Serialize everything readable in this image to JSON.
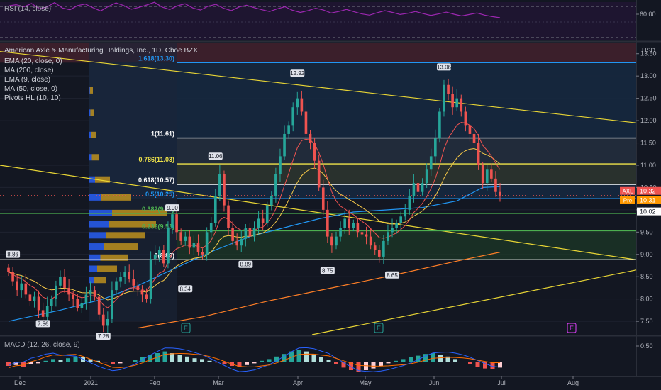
{
  "colors": {
    "bg": "#131722",
    "up": "#26a69a",
    "down": "#ef5350",
    "grid": "#2a2e39",
    "text": "#d1d4dc",
    "axis_text": "#b2b5be",
    "ema20": "#f7c948",
    "ma200": "#ff7f27",
    "ema9": "#ef5350",
    "ma50": "#2196f3",
    "trend": "#e8d535",
    "rsi": "#9c27b0",
    "fib_white": "#ffffff",
    "fib_yellow": "#f0e44a",
    "fib_green": "#4caf50",
    "fib_blue": "#2196f3"
  },
  "rsi_panel": {
    "title": "RSI (14, close)",
    "tick": "60.00",
    "line_values": [
      62.8,
      63.2,
      62.5,
      63.6,
      61.8,
      62.4,
      63.9,
      62.1,
      61.5,
      62.9,
      63.4,
      62.2,
      61.1,
      62.6,
      63.8,
      62.9,
      61.7,
      62.3,
      63.1,
      64.0,
      62.4,
      61.6,
      62.8,
      63.5,
      62.1,
      61.4,
      62.7,
      63.3,
      62.0,
      61.2,
      62.4,
      63.0,
      62.2,
      61.5,
      60.9,
      61.8,
      62.5,
      61.3,
      60.6,
      61.2,
      62.0,
      61.4,
      60.4,
      60.9,
      61.6,
      60.8,
      60.1,
      59.7,
      60.5,
      61.2,
      60.6,
      59.9,
      60.3,
      60.9,
      60.2,
      59.6,
      60.1,
      60.7,
      60.0,
      59.4,
      59.9,
      60.4,
      59.7,
      59.2,
      58.8
    ]
  },
  "main_panel": {
    "title": "American Axle & Manufacturing Holdings, Inc., 1D, Cboe BZX",
    "currency": "USD",
    "legend": [
      "EMA (20, close, 0)",
      "MA (200, close)",
      "EMA (9, close)",
      "MA (50, close, 0)",
      "Pivots HL (10, 10)"
    ]
  },
  "chart_data": {
    "type": "candlestick",
    "title": "American Axle & Manufacturing Holdings, Inc., 1D, Cboe BZX",
    "y_axis_ticks": [
      "13.50",
      "13.00",
      "12.50",
      "12.00",
      "11.50",
      "11.00",
      "10.50",
      "10.00",
      "9.50",
      "9.00",
      "8.50",
      "8.00",
      "7.50"
    ],
    "ylim": [
      7.2,
      13.75
    ],
    "x_axis_ticks": [
      "Dec",
      "2021",
      "Feb",
      "Mar",
      "Apr",
      "May",
      "Jun",
      "Jul",
      "Aug"
    ],
    "closes": [
      8.6,
      8.4,
      8.2,
      8.35,
      8.1,
      7.95,
      8.05,
      7.75,
      7.6,
      7.85,
      8.0,
      8.3,
      8.5,
      8.25,
      8.1,
      8.0,
      7.8,
      7.9,
      8.1,
      8.2,
      8.05,
      7.65,
      7.4,
      7.55,
      8.2,
      8.4,
      8.5,
      8.6,
      8.45,
      8.3,
      8.2,
      8.1,
      8.0,
      8.9,
      9.0,
      9.1,
      8.8,
      9.6,
      9.9,
      9.5,
      9.3,
      9.4,
      9.15,
      9.25,
      9.05,
      9.0,
      9.5,
      9.7,
      10.3,
      10.8,
      10.1,
      9.6,
      9.3,
      9.2,
      9.35,
      9.6,
      9.4,
      9.6,
      9.8,
      9.7,
      10.1,
      10.3,
      10.8,
      11.2,
      11.7,
      11.9,
      12.3,
      12.5,
      12.2,
      11.7,
      11.5,
      11.1,
      10.5,
      10.0,
      9.4,
      9.2,
      9.4,
      9.6,
      9.8,
      9.6,
      9.7,
      9.5,
      9.45,
      9.4,
      9.2,
      9.1,
      8.95,
      9.3,
      9.5,
      9.6,
      9.7,
      9.85,
      10.0,
      10.3,
      10.6,
      10.4,
      10.6,
      10.9,
      11.2,
      11.6,
      12.2,
      12.8,
      12.6,
      12.3,
      12.5,
      12.2,
      11.9,
      11.7,
      11.5,
      11.0,
      10.6,
      10.9,
      10.7,
      10.4,
      10.32
    ],
    "last_close": 10.32,
    "ma50_points": [
      [
        0,
        7.5
      ],
      [
        12,
        7.75
      ],
      [
        22,
        8.0
      ],
      [
        30,
        8.3
      ],
      [
        40,
        8.75
      ],
      [
        48,
        9.1
      ],
      [
        56,
        9.4
      ],
      [
        64,
        9.6
      ],
      [
        72,
        9.8
      ],
      [
        80,
        9.95
      ],
      [
        88,
        10.0
      ],
      [
        96,
        10.05
      ],
      [
        104,
        10.2
      ],
      [
        110,
        10.5
      ],
      [
        114,
        10.52
      ]
    ],
    "ma200_points": [
      [
        30,
        7.35
      ],
      [
        45,
        7.6
      ],
      [
        60,
        7.95
      ],
      [
        75,
        8.25
      ],
      [
        90,
        8.55
      ],
      [
        104,
        8.85
      ],
      [
        114,
        9.05
      ]
    ],
    "fib_levels": [
      {
        "ratio": "1.618",
        "price": 13.3,
        "label": "1.618(13.30)",
        "color": "#2196f3"
      },
      {
        "ratio": "1",
        "price": 11.61,
        "label": "1(11.61)",
        "color": "#ffffff"
      },
      {
        "ratio": "0.786",
        "price": 11.03,
        "label": "0.786(11.03)",
        "color": "#f0e44a"
      },
      {
        "ratio": "0.618",
        "price": 10.57,
        "label": "0.618(10.57)",
        "color": "#ffffff"
      },
      {
        "ratio": "0.5",
        "price": 10.25,
        "label": "0.5(10.25)",
        "color": "#2196f3"
      },
      {
        "ratio": "0.382",
        "price": 9.92,
        "label": "0.382(9.92)",
        "color": "#4caf50"
      },
      {
        "ratio": "0.236",
        "price": 9.53,
        "label": "0.236(9.53)",
        "color": "#4caf50"
      },
      {
        "ratio": "0",
        "price": 8.88,
        "label": "0(8.88)",
        "color": "#ffffff"
      }
    ],
    "pivots": [
      {
        "label": "12.92",
        "price": 12.92,
        "bar": 67,
        "pos": "above"
      },
      {
        "label": "13.06",
        "price": 13.06,
        "bar": 101,
        "pos": "above"
      },
      {
        "label": "11.06",
        "price": 11.06,
        "bar": 48,
        "pos": "above"
      },
      {
        "label": "9.90",
        "price": 9.9,
        "bar": 38,
        "pos": "above"
      },
      {
        "label": "8.86",
        "price": 8.86,
        "bar": 1,
        "pos": "above"
      },
      {
        "label": "7.56",
        "price": 7.56,
        "bar": 8,
        "pos": "below"
      },
      {
        "label": "7.28",
        "price": 7.28,
        "bar": 22,
        "pos": "below"
      },
      {
        "label": "8.34",
        "price": 8.34,
        "bar": 41,
        "pos": "below"
      },
      {
        "label": "8.89",
        "price": 8.89,
        "bar": 55,
        "pos": "below"
      },
      {
        "label": "8.75",
        "price": 8.75,
        "bar": 74,
        "pos": "below"
      },
      {
        "label": "8.65",
        "price": 8.65,
        "bar": 89,
        "pos": "below"
      }
    ],
    "price_tags": [
      {
        "name": "AXL",
        "value": "10.32",
        "price": 10.32,
        "color": "#ef5350"
      },
      {
        "name": "Pre",
        "value": "10.31",
        "price": 10.31,
        "color": "#ff9800"
      },
      {
        "name": "",
        "value": "10.02",
        "price": 10.02,
        "color": "#ffffff"
      }
    ],
    "earnings_marker": "E"
  },
  "macd_panel": {
    "title": "MACD (12, 26, close, 9)",
    "tick": "0.50",
    "histogram": [
      -0.05,
      -0.04,
      -0.06,
      -0.03,
      -0.02,
      0.01,
      0.03,
      0.02,
      0.04,
      0.06,
      0.05,
      0.03,
      0.01,
      -0.01,
      -0.03,
      -0.02,
      0.0,
      0.02,
      0.05,
      0.08,
      0.1,
      0.12,
      0.1,
      0.08,
      0.06,
      0.04,
      0.03,
      0.01,
      -0.01,
      -0.03,
      -0.05,
      -0.06,
      -0.04,
      -0.02,
      0.01,
      0.03,
      0.06,
      0.09,
      0.12,
      0.14,
      0.12,
      0.09,
      0.05,
      0.02,
      -0.03,
      -0.07,
      -0.1,
      -0.12,
      -0.1,
      -0.08,
      -0.05,
      -0.02,
      0.01,
      0.03,
      0.05,
      0.07,
      0.09,
      0.1,
      0.08,
      0.06,
      0.03,
      0.0,
      -0.03,
      -0.06,
      -0.08,
      -0.09,
      -0.07
    ]
  }
}
